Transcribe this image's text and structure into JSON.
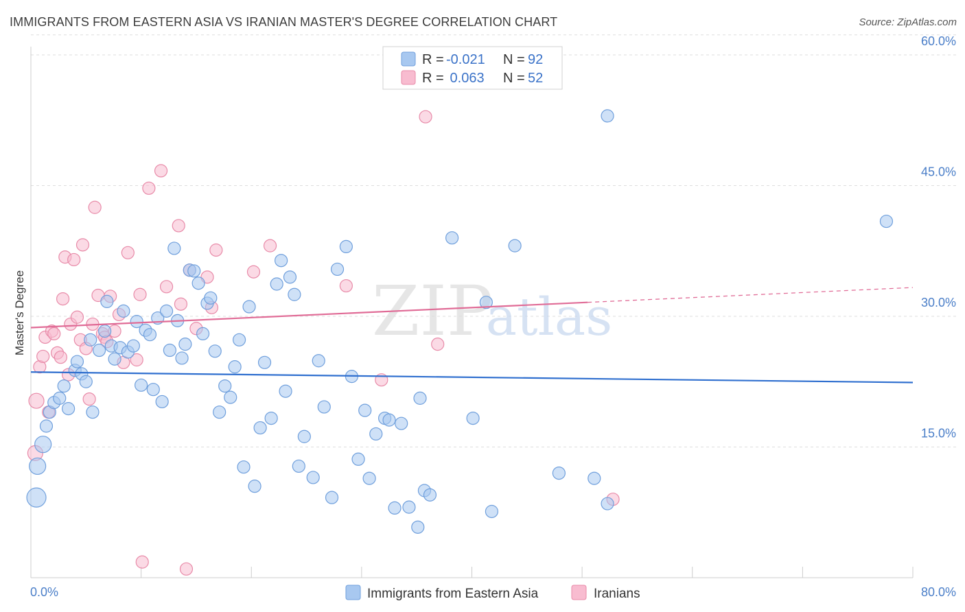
{
  "title": "IMMIGRANTS FROM EASTERN ASIA VS IRANIAN MASTER'S DEGREE CORRELATION CHART",
  "source": "Source: ZipAtlas.com",
  "colors": {
    "blue_fill": "#a8c8f0",
    "blue_stroke": "#6f9fdc",
    "blue_line": "#2f6fcf",
    "pink_fill": "#f8bcd0",
    "pink_stroke": "#e88aa8",
    "pink_line": "#e06b96",
    "tick_text": "#4a7ec8",
    "grid": "#dddddd"
  },
  "legend": {
    "rows": [
      {
        "r_label": "R =",
        "r_value": "-0.021",
        "n_label": "N =",
        "n_value": "92",
        "color": "blue"
      },
      {
        "r_label": "R =",
        "r_value": " 0.063",
        "n_label": "N =",
        "n_value": "52",
        "color": "pink"
      }
    ]
  },
  "bottom_legend": [
    {
      "label": "Immigrants from Eastern Asia",
      "color": "blue"
    },
    {
      "label": "Iranians",
      "color": "pink"
    }
  ],
  "watermark": {
    "zip": "ZIP",
    "atlas": "atlas"
  },
  "chart_data": {
    "type": "scatter",
    "title": "IMMIGRANTS FROM EASTERN ASIA VS IRANIAN MASTER'S DEGREE CORRELATION CHART",
    "xlabel": "",
    "ylabel": "Master's Degree",
    "xlim": [
      0,
      80
    ],
    "ylim": [
      0,
      60
    ],
    "x_tick_labels": [
      "0.0%",
      "80.0%"
    ],
    "y_ticks": [
      15,
      30,
      45,
      60
    ],
    "y_tick_labels": [
      "15.0%",
      "30.0%",
      "45.0%",
      "60.0%"
    ],
    "grid": true,
    "legend_position": "top-center",
    "series": [
      {
        "name": "Immigrants from Eastern Asia",
        "r": -0.021,
        "n": 92,
        "trend": {
          "x": [
            0,
            80
          ],
          "y": [
            23.6,
            22.4
          ]
        },
        "points": [
          [
            0.5,
            9.2
          ],
          [
            0.6,
            12.8
          ],
          [
            1.1,
            15.3
          ],
          [
            1.4,
            17.4
          ],
          [
            1.7,
            19.0
          ],
          [
            2.1,
            20.1
          ],
          [
            2.6,
            20.6
          ],
          [
            3.0,
            22.0
          ],
          [
            3.4,
            19.4
          ],
          [
            4.0,
            23.8
          ],
          [
            4.2,
            24.8
          ],
          [
            4.6,
            23.4
          ],
          [
            5.0,
            22.5
          ],
          [
            5.4,
            27.3
          ],
          [
            5.6,
            19.0
          ],
          [
            6.2,
            26.1
          ],
          [
            6.7,
            28.3
          ],
          [
            6.9,
            31.7
          ],
          [
            7.3,
            26.6
          ],
          [
            7.6,
            25.1
          ],
          [
            8.1,
            26.4
          ],
          [
            8.4,
            30.6
          ],
          [
            8.8,
            25.9
          ],
          [
            9.3,
            26.6
          ],
          [
            9.6,
            29.4
          ],
          [
            10.0,
            22.1
          ],
          [
            10.4,
            28.4
          ],
          [
            10.8,
            27.9
          ],
          [
            11.1,
            21.6
          ],
          [
            11.5,
            29.8
          ],
          [
            11.9,
            20.2
          ],
          [
            12.3,
            30.6
          ],
          [
            12.6,
            26.1
          ],
          [
            13.0,
            37.8
          ],
          [
            13.3,
            29.5
          ],
          [
            13.7,
            25.2
          ],
          [
            14.0,
            26.8
          ],
          [
            14.4,
            35.3
          ],
          [
            14.8,
            35.2
          ],
          [
            15.2,
            33.8
          ],
          [
            15.6,
            28.0
          ],
          [
            16.0,
            31.5
          ],
          [
            16.3,
            32.1
          ],
          [
            16.7,
            26.0
          ],
          [
            17.1,
            19.0
          ],
          [
            17.6,
            22.0
          ],
          [
            18.1,
            20.7
          ],
          [
            18.5,
            24.2
          ],
          [
            18.9,
            27.3
          ],
          [
            19.3,
            12.7
          ],
          [
            19.8,
            31.1
          ],
          [
            20.3,
            10.5
          ],
          [
            20.8,
            17.2
          ],
          [
            21.2,
            24.7
          ],
          [
            21.8,
            18.3
          ],
          [
            22.3,
            33.7
          ],
          [
            22.7,
            36.4
          ],
          [
            23.1,
            21.4
          ],
          [
            23.5,
            34.5
          ],
          [
            23.9,
            32.5
          ],
          [
            24.3,
            12.8
          ],
          [
            24.8,
            16.2
          ],
          [
            25.6,
            11.5
          ],
          [
            26.1,
            24.9
          ],
          [
            26.6,
            19.6
          ],
          [
            27.3,
            9.2
          ],
          [
            27.8,
            35.4
          ],
          [
            28.6,
            38.0
          ],
          [
            29.1,
            23.1
          ],
          [
            29.7,
            13.6
          ],
          [
            30.3,
            19.2
          ],
          [
            30.7,
            11.4
          ],
          [
            31.3,
            16.5
          ],
          [
            32.1,
            18.3
          ],
          [
            32.5,
            18.1
          ],
          [
            33.0,
            8.0
          ],
          [
            33.6,
            17.7
          ],
          [
            34.3,
            8.1
          ],
          [
            35.1,
            5.8
          ],
          [
            35.3,
            20.6
          ],
          [
            35.7,
            10.0
          ],
          [
            36.2,
            9.5
          ],
          [
            38.2,
            39.0
          ],
          [
            40.1,
            18.3
          ],
          [
            41.3,
            31.6
          ],
          [
            41.8,
            7.6
          ],
          [
            43.9,
            38.1
          ],
          [
            47.9,
            12.0
          ],
          [
            51.1,
            11.4
          ],
          [
            52.3,
            8.5
          ],
          [
            52.3,
            53.0
          ],
          [
            77.6,
            40.9
          ]
        ]
      },
      {
        "name": "Iranians",
        "r": 0.063,
        "n": 52,
        "trend": {
          "x": [
            0,
            50.5
          ],
          "y": [
            28.7,
            31.6
          ]
        },
        "trend_dashed": {
          "x": [
            50.5,
            80
          ],
          "y": [
            31.6,
            33.3
          ]
        },
        "points": [
          [
            0.4,
            14.3
          ],
          [
            0.5,
            20.3
          ],
          [
            0.8,
            24.2
          ],
          [
            1.1,
            25.4
          ],
          [
            1.3,
            27.6
          ],
          [
            1.6,
            19.0
          ],
          [
            1.9,
            28.3
          ],
          [
            2.1,
            28.0
          ],
          [
            2.4,
            25.8
          ],
          [
            2.7,
            25.3
          ],
          [
            2.9,
            32.0
          ],
          [
            3.1,
            36.8
          ],
          [
            3.4,
            23.3
          ],
          [
            3.6,
            29.1
          ],
          [
            3.9,
            36.5
          ],
          [
            4.2,
            29.9
          ],
          [
            4.5,
            27.3
          ],
          [
            4.7,
            38.2
          ],
          [
            5.0,
            26.3
          ],
          [
            5.3,
            20.5
          ],
          [
            5.6,
            29.1
          ],
          [
            5.8,
            42.5
          ],
          [
            6.1,
            32.4
          ],
          [
            6.5,
            28.0
          ],
          [
            6.7,
            27.6
          ],
          [
            6.9,
            27.1
          ],
          [
            7.2,
            32.3
          ],
          [
            7.6,
            28.3
          ],
          [
            8.0,
            30.2
          ],
          [
            8.4,
            24.7
          ],
          [
            8.8,
            37.3
          ],
          [
            9.6,
            25.0
          ],
          [
            9.9,
            32.5
          ],
          [
            10.1,
            1.8
          ],
          [
            10.7,
            44.7
          ],
          [
            11.8,
            46.7
          ],
          [
            12.3,
            33.4
          ],
          [
            13.4,
            40.4
          ],
          [
            13.6,
            31.4
          ],
          [
            14.1,
            1.0
          ],
          [
            14.4,
            35.3
          ],
          [
            15.0,
            28.6
          ],
          [
            16.0,
            34.5
          ],
          [
            16.4,
            31.0
          ],
          [
            16.8,
            37.6
          ],
          [
            20.2,
            35.1
          ],
          [
            21.7,
            38.1
          ],
          [
            28.6,
            33.5
          ],
          [
            31.8,
            22.7
          ],
          [
            35.8,
            52.9
          ],
          [
            36.9,
            26.8
          ],
          [
            52.8,
            9.0
          ]
        ]
      }
    ]
  }
}
